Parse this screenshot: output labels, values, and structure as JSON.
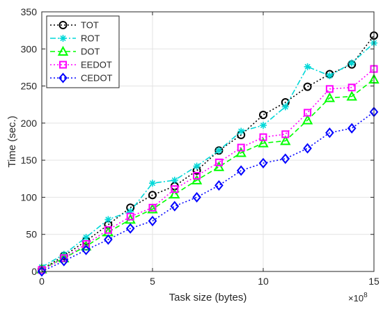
{
  "chart_data": {
    "type": "line",
    "xlabel": "Task size (bytes)",
    "ylabel": "Time (sec.)",
    "x_exponent_label": "×10",
    "x_exponent_power": "8",
    "xlim": [
      0,
      15
    ],
    "ylim": [
      0,
      350
    ],
    "xticks": [
      0,
      5,
      10,
      15
    ],
    "yticks": [
      0,
      50,
      100,
      150,
      200,
      250,
      300,
      350
    ],
    "grid": true,
    "legend_position": "top-left",
    "x": [
      0,
      1,
      2,
      3,
      4,
      5,
      6,
      7,
      8,
      9,
      10,
      11,
      12,
      13,
      14,
      15
    ],
    "series": [
      {
        "name": "TOT",
        "color": "#000000",
        "dash": "dotted",
        "marker": "circle",
        "values": [
          3,
          21,
          41,
          63,
          86,
          103,
          115,
          136,
          163,
          184,
          211,
          228,
          249,
          266,
          279,
          318
        ]
      },
      {
        "name": "ROT",
        "color": "#00d8d8",
        "dash": "dashdot",
        "marker": "asterisk",
        "values": [
          6,
          23,
          46,
          70,
          81,
          119,
          123,
          142,
          163,
          189,
          197,
          222,
          276,
          264,
          281,
          308
        ]
      },
      {
        "name": "DOT",
        "color": "#00ff00",
        "dash": "dashed",
        "marker": "triangle",
        "values": [
          3,
          18,
          34,
          53,
          70,
          84,
          104,
          123,
          141,
          160,
          173,
          176,
          204,
          234,
          236,
          259
        ]
      },
      {
        "name": "EEDOT",
        "color": "#ff00ff",
        "dash": "dotted",
        "marker": "square",
        "values": [
          2,
          18,
          37,
          56,
          74,
          86,
          111,
          129,
          147,
          167,
          181,
          185,
          214,
          246,
          248,
          273
        ]
      },
      {
        "name": "CEDOT",
        "color": "#0000ff",
        "dash": "dotted",
        "marker": "diamond",
        "values": [
          0,
          14,
          29,
          43,
          58,
          68,
          88,
          100,
          116,
          136,
          146,
          152,
          166,
          187,
          193,
          215
        ]
      }
    ]
  }
}
